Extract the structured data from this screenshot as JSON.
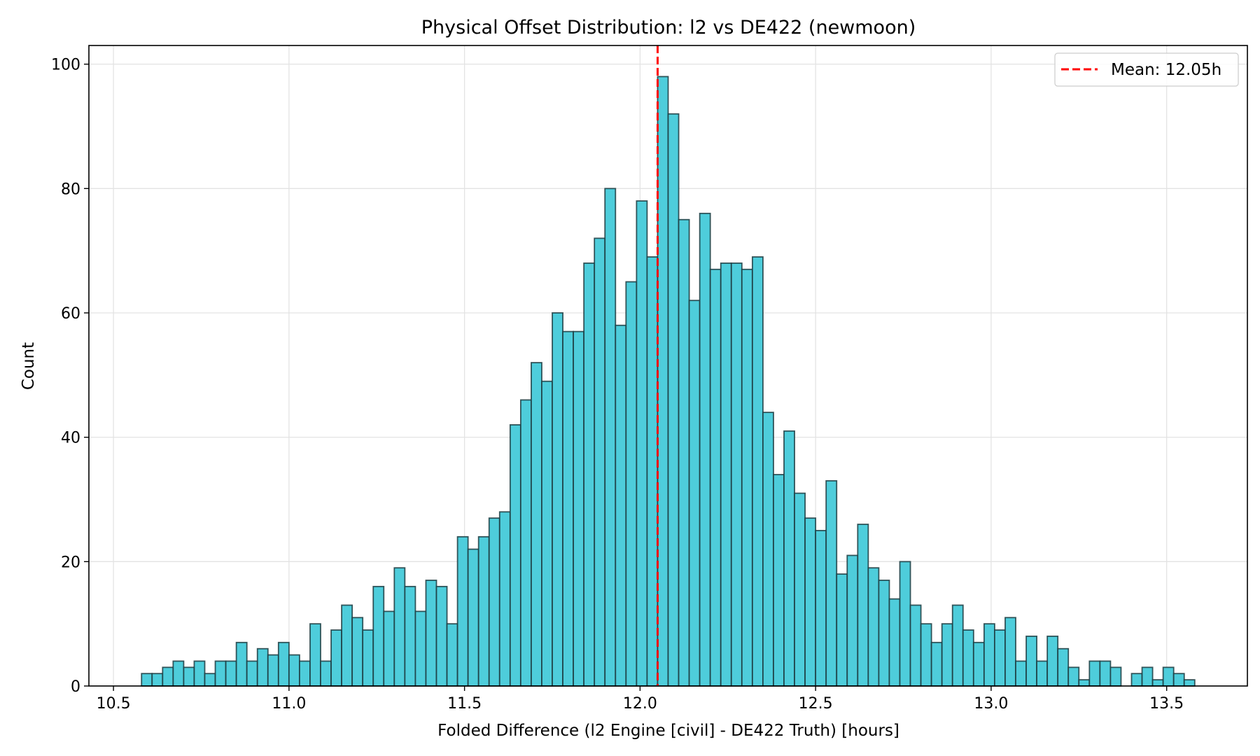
{
  "chart_data": {
    "type": "bar",
    "subtype": "histogram",
    "title": "Physical Offset Distribution: l2 vs DE422 (newmoon)",
    "xlabel": "Folded Difference (l2 Engine [civil] - DE422 Truth) [hours]",
    "ylabel": "Count",
    "xlim": [
      10.43,
      13.73
    ],
    "ylim": [
      0,
      103
    ],
    "xticks": [
      10.5,
      11.0,
      11.5,
      12.0,
      12.5,
      13.0,
      13.5
    ],
    "xtick_labels": [
      "10.5",
      "11.0",
      "11.5",
      "12.0",
      "12.5",
      "13.0",
      "13.5"
    ],
    "yticks": [
      0,
      20,
      40,
      60,
      80,
      100
    ],
    "ytick_labels": [
      "0",
      "20",
      "40",
      "60",
      "80",
      "100"
    ],
    "grid": true,
    "bin_start": 10.58,
    "bin_end": 13.58,
    "bin_count": 100,
    "values": [
      2,
      2,
      3,
      4,
      3,
      4,
      2,
      4,
      4,
      7,
      4,
      6,
      5,
      7,
      5,
      4,
      10,
      4,
      9,
      13,
      11,
      9,
      16,
      12,
      19,
      16,
      12,
      17,
      16,
      10,
      24,
      22,
      24,
      27,
      28,
      42,
      46,
      52,
      49,
      60,
      57,
      57,
      68,
      72,
      80,
      58,
      65,
      78,
      69,
      98,
      92,
      75,
      62,
      76,
      67,
      68,
      68,
      67,
      69,
      44,
      34,
      41,
      31,
      27,
      25,
      33,
      18,
      21,
      26,
      19,
      17,
      14,
      20,
      13,
      10,
      7,
      10,
      13,
      9,
      7,
      10,
      9,
      11,
      4,
      8,
      4,
      8,
      6,
      3,
      1,
      4,
      4,
      3,
      0,
      2,
      3,
      1,
      3,
      2,
      1
    ],
    "bar_color": "#4ECDDB",
    "edge_color": "#1c3b40",
    "mean_line": {
      "x": 12.05,
      "color": "#FF0000",
      "style": "dashed",
      "label": "Mean: 12.05h"
    },
    "legend": {
      "position": "upper right",
      "entries": [
        "Mean: 12.05h"
      ]
    }
  }
}
